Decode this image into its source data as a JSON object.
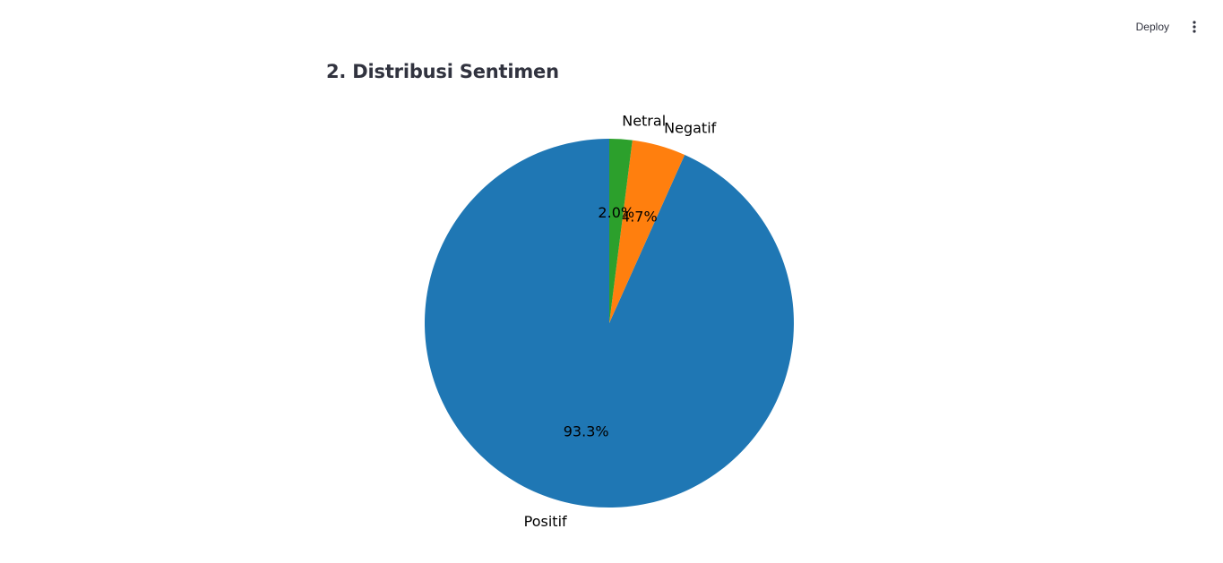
{
  "header": {
    "deploy_label": "Deploy",
    "menu_icon": "kebab-menu-icon"
  },
  "page": {
    "title": "2. Distribusi Sentimen"
  },
  "chart_data": {
    "type": "pie",
    "title": "",
    "startangle": 90,
    "direction": "counterclockwise",
    "slices": [
      {
        "label": "Positif",
        "value": 93.3,
        "pct_label": "93.3%",
        "color": "#1f77b4"
      },
      {
        "label": "Negatif",
        "value": 4.7,
        "pct_label": "4.7%",
        "color": "#ff7f0e"
      },
      {
        "label": "Netral",
        "value": 2.0,
        "pct_label": "2.0%",
        "color": "#2ca02c"
      }
    ]
  }
}
